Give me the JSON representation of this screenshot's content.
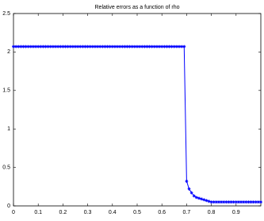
{
  "chart_data": {
    "type": "line",
    "title": "Relative errors as a function of rho",
    "x": [
      0,
      0.01,
      0.02,
      0.03,
      0.04,
      0.05,
      0.06,
      0.07,
      0.08,
      0.09,
      0.1,
      0.11,
      0.12,
      0.13,
      0.14,
      0.15,
      0.16,
      0.17,
      0.18,
      0.19,
      0.2,
      0.21,
      0.22,
      0.23,
      0.24,
      0.25,
      0.26,
      0.27,
      0.28,
      0.29,
      0.3,
      0.31,
      0.32,
      0.33,
      0.34,
      0.35,
      0.36,
      0.37,
      0.38,
      0.39,
      0.4,
      0.41,
      0.42,
      0.43,
      0.44,
      0.45,
      0.46,
      0.47,
      0.48,
      0.49,
      0.5,
      0.51,
      0.52,
      0.53,
      0.54,
      0.55,
      0.56,
      0.57,
      0.58,
      0.59,
      0.6,
      0.61,
      0.62,
      0.63,
      0.64,
      0.65,
      0.66,
      0.67,
      0.68,
      0.69,
      0.7,
      0.71,
      0.72,
      0.73,
      0.74,
      0.75,
      0.76,
      0.77,
      0.78,
      0.79,
      0.8,
      0.81,
      0.82,
      0.83,
      0.84,
      0.85,
      0.86,
      0.87,
      0.88,
      0.89,
      0.9,
      0.91,
      0.92,
      0.93,
      0.94,
      0.95,
      0.96,
      0.97,
      0.98,
      0.99,
      1
    ],
    "series": [
      {
        "color": "#0000ff",
        "values": [
          2.07,
          2.07,
          2.07,
          2.07,
          2.07,
          2.07,
          2.07,
          2.07,
          2.07,
          2.07,
          2.07,
          2.07,
          2.07,
          2.07,
          2.07,
          2.07,
          2.07,
          2.07,
          2.07,
          2.07,
          2.07,
          2.07,
          2.07,
          2.07,
          2.07,
          2.07,
          2.07,
          2.07,
          2.07,
          2.07,
          2.07,
          2.07,
          2.07,
          2.07,
          2.07,
          2.07,
          2.07,
          2.07,
          2.07,
          2.07,
          2.07,
          2.07,
          2.07,
          2.07,
          2.07,
          2.07,
          2.07,
          2.07,
          2.07,
          2.07,
          2.07,
          2.07,
          2.07,
          2.07,
          2.07,
          2.07,
          2.07,
          2.07,
          2.07,
          2.07,
          2.07,
          2.07,
          2.07,
          2.07,
          2.07,
          2.07,
          2.07,
          2.07,
          2.07,
          2.07,
          0.32,
          0.22,
          0.17,
          0.13,
          0.11,
          0.1,
          0.09,
          0.08,
          0.07,
          0.06,
          0.05,
          0.05,
          0.05,
          0.05,
          0.05,
          0.05,
          0.05,
          0.05,
          0.05,
          0.05,
          0.05,
          0.05,
          0.05,
          0.05,
          0.05,
          0.05,
          0.05,
          0.05,
          0.05,
          0.05,
          0.05
        ]
      }
    ],
    "xlim": [
      0,
      1
    ],
    "xticks": [
      0,
      0.1,
      0.2,
      0.3,
      0.4,
      0.5,
      0.6,
      0.7,
      0.8,
      0.9
    ],
    "ylim": [
      0,
      2.5
    ],
    "yticks": [
      0,
      0.5,
      1,
      1.5,
      2,
      2.5
    ]
  }
}
